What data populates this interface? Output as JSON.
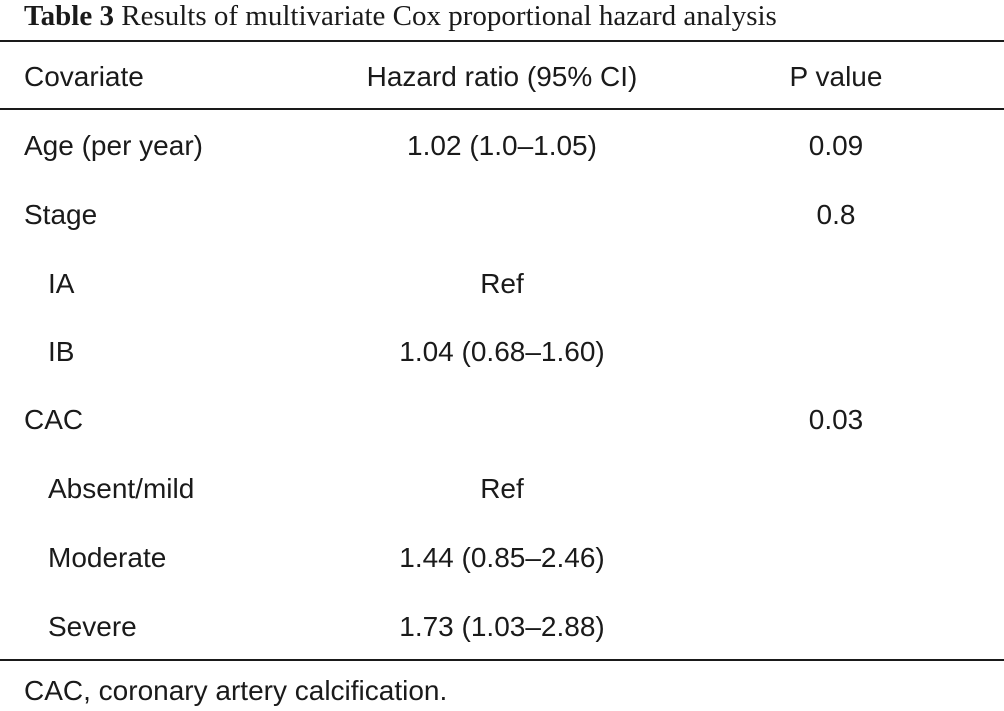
{
  "table": {
    "label": "Table 3",
    "caption": "Results of multivariate Cox proportional hazard analysis",
    "headers": {
      "covariate": "Covariate",
      "hazard_ratio": "Hazard ratio (95% CI)",
      "p_value": "P value"
    },
    "rows": [
      {
        "covariate": "Age (per year)",
        "hazard_ratio": "1.02 (1.0–1.05)",
        "p_value": "0.09"
      },
      {
        "covariate": "Stage",
        "hazard_ratio": "",
        "p_value": "0.8"
      },
      {
        "covariate": "IA",
        "hazard_ratio": "Ref",
        "p_value": ""
      },
      {
        "covariate": "IB",
        "hazard_ratio": "1.04 (0.68–1.60)",
        "p_value": ""
      },
      {
        "covariate": "CAC",
        "hazard_ratio": "",
        "p_value": "0.03"
      },
      {
        "covariate": "Absent/mild",
        "hazard_ratio": "Ref",
        "p_value": ""
      },
      {
        "covariate": "Moderate",
        "hazard_ratio": "1.44 (0.85–2.46)",
        "p_value": ""
      },
      {
        "covariate": "Severe",
        "hazard_ratio": "1.73 (1.03–2.88)",
        "p_value": ""
      }
    ],
    "footnote": "CAC, coronary artery calcification."
  }
}
